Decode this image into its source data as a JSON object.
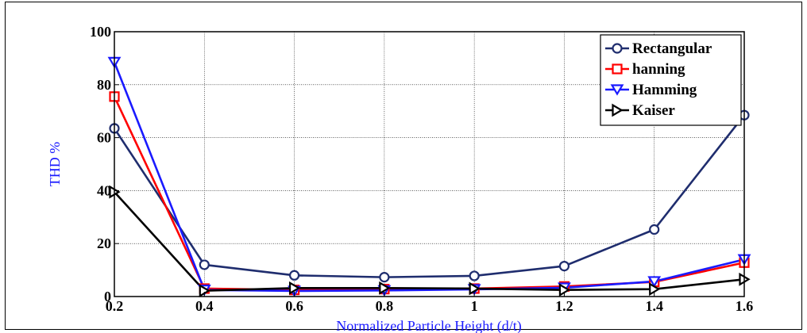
{
  "chart_data": {
    "type": "line",
    "title": "",
    "xlabel": "Normalized Particle Height (d/t)",
    "ylabel": "THD %",
    "xlim": [
      0.2,
      1.6
    ],
    "ylim": [
      0,
      100
    ],
    "xticks": [
      "0.2",
      "0.4",
      "0.6",
      "0.8",
      "1",
      "1.2",
      "1.4",
      "1.6"
    ],
    "yticks": [
      "0",
      "20",
      "40",
      "60",
      "80",
      "100"
    ],
    "grid": true,
    "legend_position": "top-right",
    "x": [
      0.2,
      0.4,
      0.6,
      0.8,
      1.0,
      1.2,
      1.4,
      1.6
    ],
    "series": [
      {
        "name": "Rectangular",
        "color": "#1f2d6e",
        "marker": "circle",
        "values": [
          63.5,
          12,
          8,
          7.3,
          7.8,
          11.5,
          25.3,
          68.5
        ]
      },
      {
        "name": "hanning",
        "color": "#ff0000",
        "marker": "square",
        "values": [
          75.5,
          3,
          2.5,
          2.8,
          3,
          3.8,
          5.5,
          12.8
        ]
      },
      {
        "name": "Hamming",
        "color": "#1a1aff",
        "marker": "triangle-down",
        "values": [
          88.5,
          2.5,
          2.1,
          2.3,
          2.7,
          3.3,
          5.7,
          14
        ]
      },
      {
        "name": "Kaiser",
        "color": "#000000",
        "marker": "triangle-right",
        "values": [
          39.5,
          2.2,
          3.2,
          3.2,
          3,
          2.5,
          2.8,
          6.5
        ]
      }
    ]
  }
}
